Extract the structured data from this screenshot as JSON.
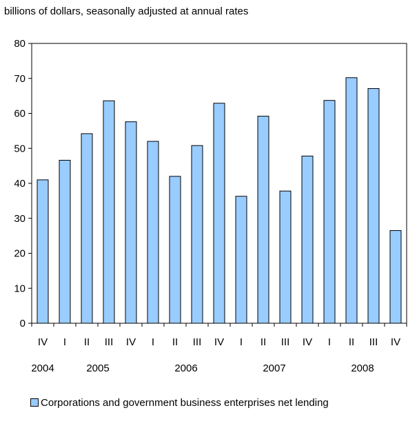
{
  "chart_data": {
    "type": "bar",
    "title": "",
    "subtitle": "billions of dollars, seasonally adjusted at annual rates",
    "xlabel": "",
    "ylabel": "",
    "ylim": [
      0,
      80
    ],
    "yticks": [
      0,
      10,
      20,
      30,
      40,
      50,
      60,
      70,
      80
    ],
    "grid": false,
    "legend_position": "bottom",
    "categories": [
      "IV",
      "I",
      "II",
      "III",
      "IV",
      "I",
      "II",
      "III",
      "IV",
      "I",
      "II",
      "III",
      "IV",
      "I",
      "II",
      "III",
      "IV"
    ],
    "year_labels": [
      {
        "year": "2004",
        "start": 0,
        "end": 0
      },
      {
        "year": "2005",
        "start": 1,
        "end": 4
      },
      {
        "year": "2006",
        "start": 5,
        "end": 8
      },
      {
        "year": "2007",
        "start": 9,
        "end": 12
      },
      {
        "year": "2008",
        "start": 13,
        "end": 16
      }
    ],
    "series": [
      {
        "name": "Corporations and government business enterprises net lending",
        "color": "#99ccff",
        "values": [
          41,
          46.6,
          54.2,
          63.6,
          57.6,
          52,
          42,
          50.8,
          62.9,
          36.3,
          59.2,
          37.8,
          47.8,
          63.7,
          70.2,
          67.1,
          26.5
        ]
      }
    ]
  }
}
